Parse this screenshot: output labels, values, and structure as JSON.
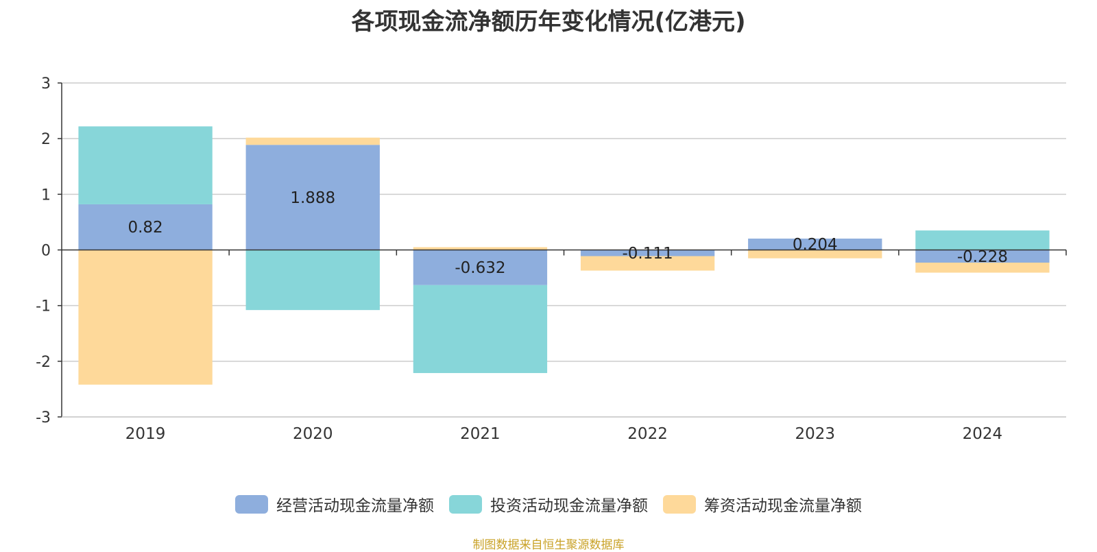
{
  "chart_data": {
    "type": "bar",
    "stacked": true,
    "title": "各项现金流净额历年变化情况(亿港元)",
    "categories": [
      "2019",
      "2020",
      "2021",
      "2022",
      "2023",
      "2024"
    ],
    "series": [
      {
        "name": "经营活动现金流量净额",
        "color": "#8eaedd",
        "values": [
          0.82,
          1.888,
          -0.632,
          -0.111,
          0.204,
          -0.228
        ],
        "show_labels": true
      },
      {
        "name": "投资活动现金流量净额",
        "color": "#87d6d9",
        "values": [
          1.4,
          -1.08,
          -1.58,
          0,
          0,
          0.35
        ],
        "show_labels": false
      },
      {
        "name": "筹资活动现金流量净额",
        "color": "#fed99a",
        "values": [
          -2.42,
          0.13,
          0.05,
          -0.26,
          -0.15,
          -0.18
        ],
        "show_labels": false
      }
    ],
    "data_labels": [
      "0.82",
      "1.888",
      "-0.632",
      "-0.111",
      "0.204",
      "-0.228"
    ],
    "ylim": [
      -3,
      3
    ],
    "yticks": [
      "-3",
      "-2",
      "-1",
      "0",
      "1",
      "2",
      "3"
    ],
    "grid": true,
    "legend_position": "bottom"
  },
  "footer": {
    "source": "制图数据来自恒生聚源数据库"
  }
}
